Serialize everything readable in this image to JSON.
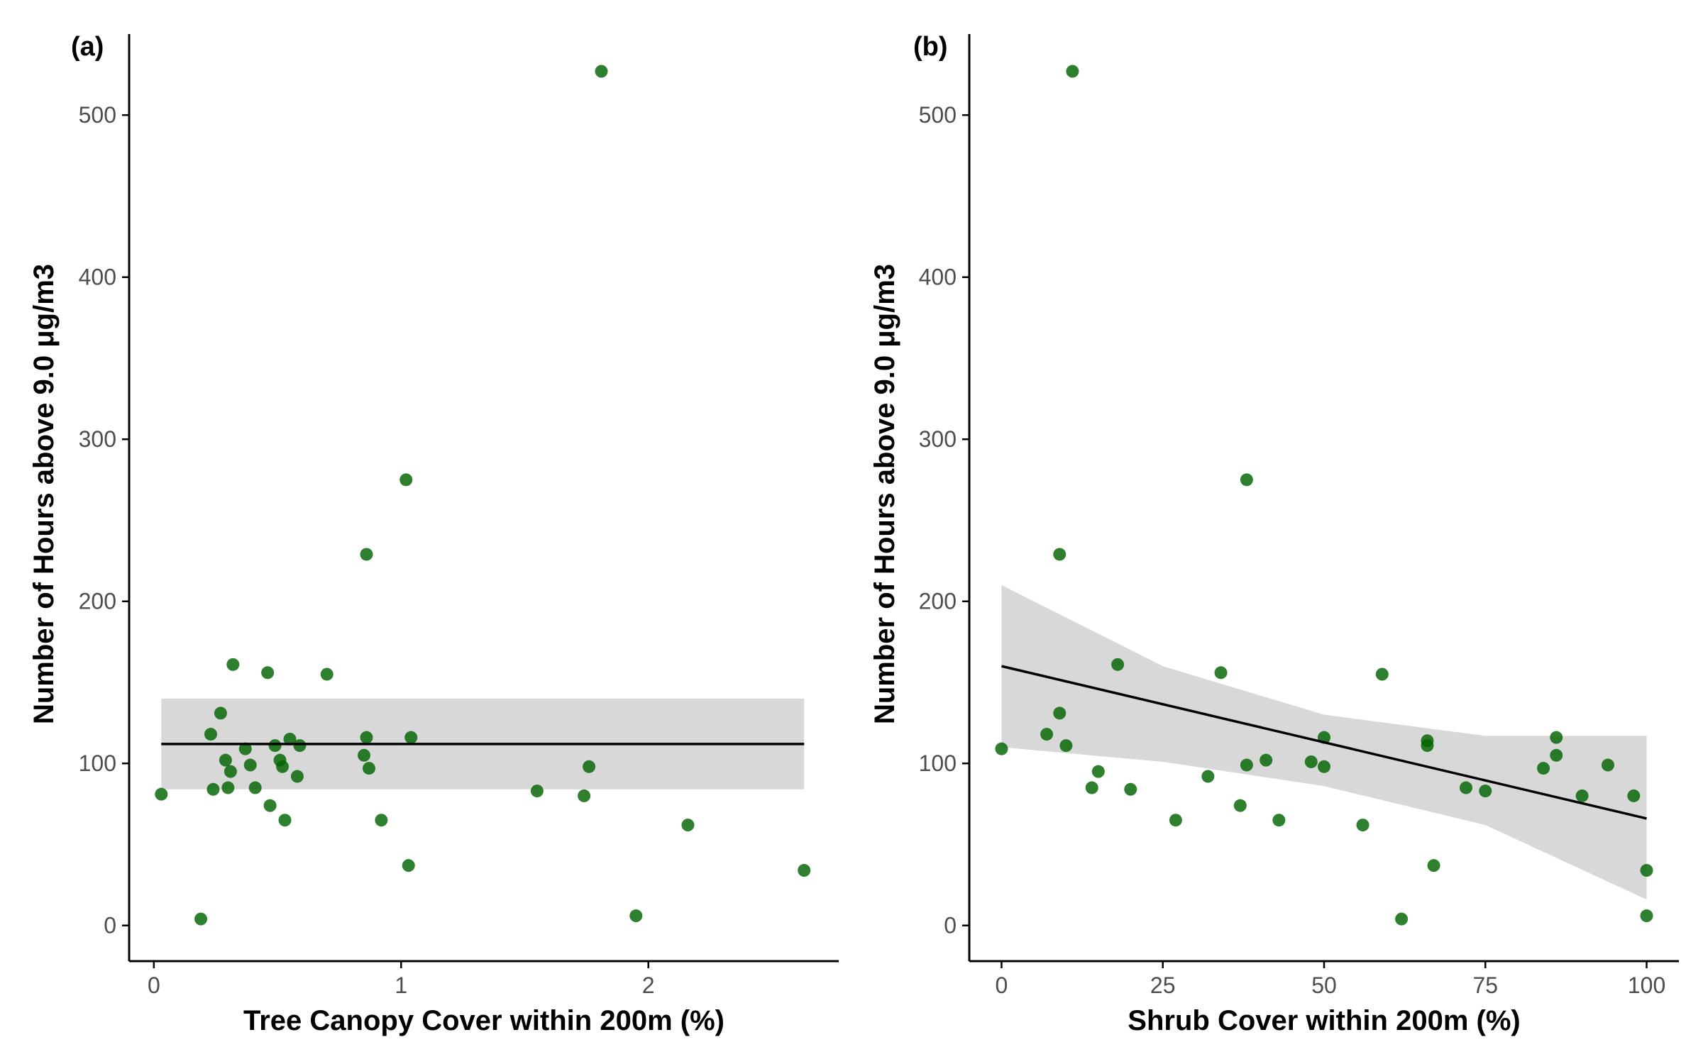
{
  "colors": {
    "point": "#006400",
    "fit_line": "#000000",
    "ribbon": "#d6d6d6",
    "axis": "#000000",
    "tick_text": "#4d4d4d"
  },
  "chart_data": [
    {
      "type": "scatter",
      "panel_label": "(a)",
      "xlabel": "Tree Canopy Cover within 200m (%)",
      "ylabel": "Number of Hours above 9.0 μg/m3",
      "xlim": [
        -0.1,
        2.77
      ],
      "ylim": [
        -22,
        550
      ],
      "x_ticks": [
        0,
        1,
        2
      ],
      "y_ticks": [
        0,
        100,
        200,
        300,
        400,
        500
      ],
      "grid": false,
      "legend": "none",
      "points": [
        {
          "x": 0.03,
          "y": 81
        },
        {
          "x": 0.19,
          "y": 4
        },
        {
          "x": 0.23,
          "y": 118
        },
        {
          "x": 0.24,
          "y": 84
        },
        {
          "x": 0.27,
          "y": 131
        },
        {
          "x": 0.29,
          "y": 102
        },
        {
          "x": 0.3,
          "y": 85
        },
        {
          "x": 0.31,
          "y": 95
        },
        {
          "x": 0.32,
          "y": 161
        },
        {
          "x": 0.37,
          "y": 109
        },
        {
          "x": 0.39,
          "y": 99
        },
        {
          "x": 0.41,
          "y": 85
        },
        {
          "x": 0.46,
          "y": 156
        },
        {
          "x": 0.47,
          "y": 74
        },
        {
          "x": 0.49,
          "y": 111
        },
        {
          "x": 0.51,
          "y": 102
        },
        {
          "x": 0.52,
          "y": 98
        },
        {
          "x": 0.53,
          "y": 65
        },
        {
          "x": 0.55,
          "y": 115
        },
        {
          "x": 0.58,
          "y": 92
        },
        {
          "x": 0.59,
          "y": 111
        },
        {
          "x": 0.7,
          "y": 155
        },
        {
          "x": 0.85,
          "y": 105
        },
        {
          "x": 0.86,
          "y": 229
        },
        {
          "x": 0.86,
          "y": 116
        },
        {
          "x": 0.87,
          "y": 97
        },
        {
          "x": 0.92,
          "y": 65
        },
        {
          "x": 1.02,
          "y": 275
        },
        {
          "x": 1.03,
          "y": 37
        },
        {
          "x": 1.04,
          "y": 116
        },
        {
          "x": 1.55,
          "y": 83
        },
        {
          "x": 1.74,
          "y": 80
        },
        {
          "x": 1.76,
          "y": 98
        },
        {
          "x": 1.81,
          "y": 527
        },
        {
          "x": 1.95,
          "y": 6
        },
        {
          "x": 2.16,
          "y": 62
        },
        {
          "x": 2.63,
          "y": 34
        }
      ],
      "fit": {
        "x": [
          0.03,
          2.63
        ],
        "y": [
          112,
          112
        ]
      },
      "ci": {
        "x": [
          0.03,
          2.63
        ],
        "lower": [
          84,
          84
        ],
        "upper": [
          140,
          140
        ]
      }
    },
    {
      "type": "scatter",
      "panel_label": "(b)",
      "xlabel": "Shrub Cover within 200m (%)",
      "ylabel": "Number of Hours above 9.0 μg/m3",
      "xlim": [
        -5,
        105
      ],
      "ylim": [
        -22,
        550
      ],
      "x_ticks": [
        0,
        25,
        50,
        75,
        100
      ],
      "y_ticks": [
        0,
        100,
        200,
        300,
        400,
        500
      ],
      "grid": false,
      "legend": "none",
      "points": [
        {
          "x": 0,
          "y": 109
        },
        {
          "x": 7,
          "y": 118
        },
        {
          "x": 9,
          "y": 131
        },
        {
          "x": 9,
          "y": 229
        },
        {
          "x": 10,
          "y": 111
        },
        {
          "x": 11,
          "y": 527
        },
        {
          "x": 14,
          "y": 85
        },
        {
          "x": 15,
          "y": 95
        },
        {
          "x": 18,
          "y": 161
        },
        {
          "x": 20,
          "y": 84
        },
        {
          "x": 27,
          "y": 65
        },
        {
          "x": 32,
          "y": 92
        },
        {
          "x": 34,
          "y": 156
        },
        {
          "x": 37,
          "y": 74
        },
        {
          "x": 38,
          "y": 99
        },
        {
          "x": 38,
          "y": 275
        },
        {
          "x": 41,
          "y": 102
        },
        {
          "x": 43,
          "y": 65
        },
        {
          "x": 48,
          "y": 101
        },
        {
          "x": 50,
          "y": 116
        },
        {
          "x": 50,
          "y": 98
        },
        {
          "x": 56,
          "y": 62
        },
        {
          "x": 59,
          "y": 155
        },
        {
          "x": 62,
          "y": 4
        },
        {
          "x": 66,
          "y": 111
        },
        {
          "x": 66,
          "y": 114
        },
        {
          "x": 67,
          "y": 37
        },
        {
          "x": 72,
          "y": 85
        },
        {
          "x": 75,
          "y": 83
        },
        {
          "x": 84,
          "y": 97
        },
        {
          "x": 86,
          "y": 105
        },
        {
          "x": 86,
          "y": 116
        },
        {
          "x": 90,
          "y": 80
        },
        {
          "x": 94,
          "y": 99
        },
        {
          "x": 98,
          "y": 80
        },
        {
          "x": 100,
          "y": 34
        },
        {
          "x": 100,
          "y": 6
        }
      ],
      "fit": {
        "x": [
          0,
          100
        ],
        "y": [
          160,
          66
        ]
      },
      "ci": {
        "x": [
          0,
          25,
          50,
          75,
          100
        ],
        "lower": [
          110,
          101,
          86,
          62,
          16
        ],
        "upper": [
          210,
          160,
          130,
          117,
          117
        ]
      }
    }
  ]
}
